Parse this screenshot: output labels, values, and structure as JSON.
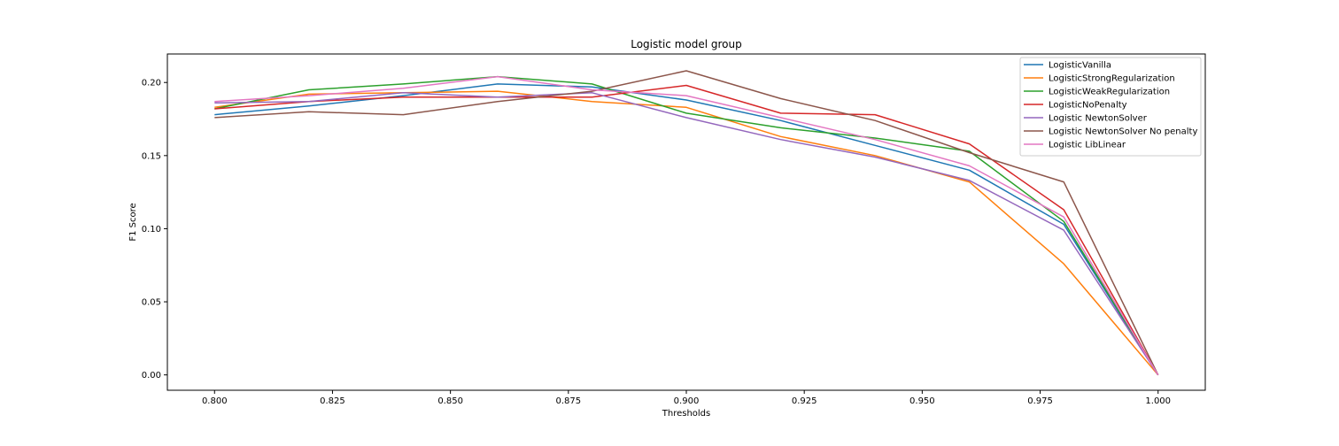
{
  "chart_data": {
    "type": "line",
    "title": "Logistic model group",
    "xlabel": "Thresholds",
    "ylabel": "F1 Score",
    "xlim": [
      0.79,
      1.01
    ],
    "ylim": [
      -0.0105,
      0.2195
    ],
    "xticks": [
      0.8,
      0.825,
      0.85,
      0.875,
      0.9,
      0.925,
      0.95,
      0.975,
      1.0
    ],
    "xtick_labels": [
      "0.800",
      "0.825",
      "0.850",
      "0.875",
      "0.900",
      "0.925",
      "0.950",
      "0.975",
      "1.000"
    ],
    "yticks": [
      0.0,
      0.05,
      0.1,
      0.15,
      0.2
    ],
    "ytick_labels": [
      "0.00",
      "0.05",
      "0.10",
      "0.15",
      "0.20"
    ],
    "grid": false,
    "legend_position": "top-right",
    "x": [
      0.8,
      0.82,
      0.84,
      0.86,
      0.88,
      0.9,
      0.92,
      0.94,
      0.96,
      0.98,
      1.0
    ],
    "series": [
      {
        "name": "LogisticVanilla",
        "color": "#1f77b4",
        "values": [
          0.178,
          0.184,
          0.191,
          0.199,
          0.197,
          0.188,
          0.174,
          0.157,
          0.14,
          0.103,
          0.0
        ]
      },
      {
        "name": "LogisticStrongRegularization",
        "color": "#ff7f0e",
        "values": [
          0.183,
          0.192,
          0.193,
          0.194,
          0.187,
          0.183,
          0.163,
          0.15,
          0.132,
          0.076,
          0.0
        ]
      },
      {
        "name": "LogisticWeakRegularization",
        "color": "#2ca02c",
        "values": [
          0.182,
          0.195,
          0.199,
          0.204,
          0.199,
          0.179,
          0.169,
          0.162,
          0.153,
          0.105,
          0.0
        ]
      },
      {
        "name": "LogisticNoPenalty",
        "color": "#d62728",
        "values": [
          0.182,
          0.187,
          0.19,
          0.19,
          0.19,
          0.198,
          0.179,
          0.178,
          0.158,
          0.113,
          0.0
        ]
      },
      {
        "name": "Logistic NewtonSolver",
        "color": "#9467bd",
        "values": [
          0.186,
          0.187,
          0.193,
          0.19,
          0.193,
          0.176,
          0.161,
          0.149,
          0.133,
          0.099,
          0.0
        ]
      },
      {
        "name": "Logistic NewtonSolver No penalty",
        "color": "#8c564b",
        "values": [
          0.176,
          0.18,
          0.178,
          0.187,
          0.194,
          0.208,
          0.189,
          0.174,
          0.152,
          0.132,
          0.0
        ]
      },
      {
        "name": "Logistic LibLinear",
        "color": "#e377c2",
        "values": [
          0.187,
          0.191,
          0.196,
          0.204,
          0.195,
          0.191,
          0.176,
          0.161,
          0.143,
          0.108,
          0.0
        ]
      }
    ]
  }
}
